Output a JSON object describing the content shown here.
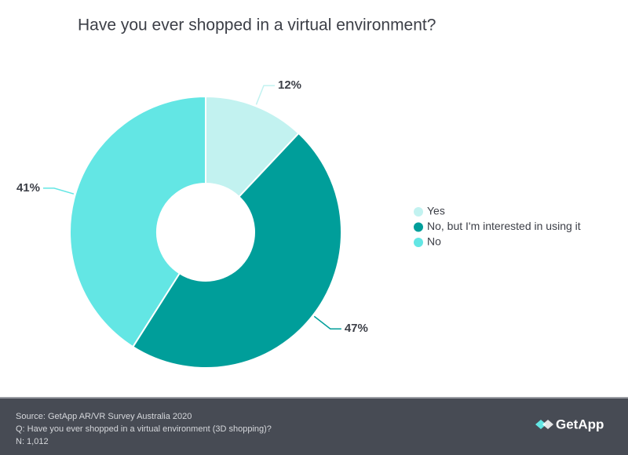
{
  "chart_data": {
    "type": "donut",
    "title": "Have you ever shopped in a virtual environment?",
    "categories": [
      "Yes",
      "No, but I'm interested in using it",
      "No"
    ],
    "values": [
      12,
      47,
      41
    ],
    "value_labels": [
      "12%",
      "47%",
      "41%"
    ],
    "colors": [
      "#c2f2f0",
      "#009e9a",
      "#63e6e4"
    ],
    "legend": "right"
  },
  "footer": {
    "source": "Source: GetApp AR/VR Survey Australia 2020",
    "question": "Q: Have you ever shopped in a virtual environment (3D shopping)?",
    "sample": "N: 1,012",
    "brand": "GetApp"
  }
}
